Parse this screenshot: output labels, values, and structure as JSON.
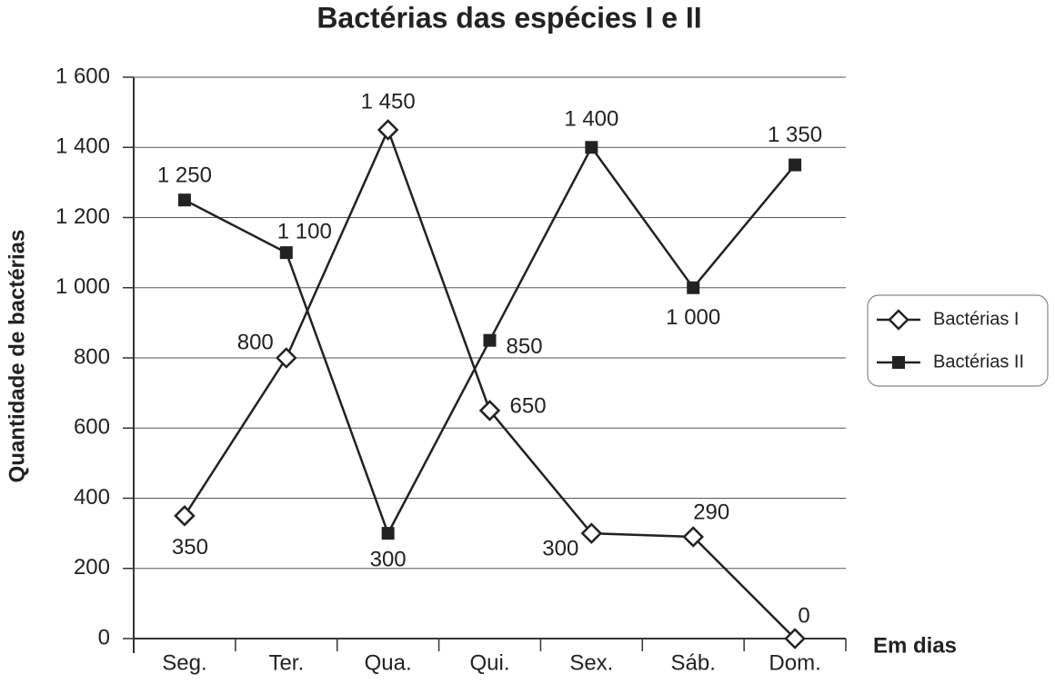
{
  "chart_data": {
    "type": "line",
    "title": "Bactérias das espécies I e II",
    "x_label": "Em dias",
    "y_label": "Quantidade de bactérias",
    "categories": [
      "Seg.",
      "Ter.",
      "Qua.",
      "Qui.",
      "Sex.",
      "Sáb.",
      "Dom."
    ],
    "series": [
      {
        "name": "Bactérias I",
        "color": "#222222",
        "marker": "diamond",
        "values": [
          350,
          800,
          1450,
          650,
          300,
          290,
          0
        ],
        "value_labels": [
          "350",
          "800",
          "1 450",
          "650",
          "300",
          "290",
          "0"
        ]
      },
      {
        "name": "Bactérias II",
        "color": "#222222",
        "marker": "square",
        "values": [
          1250,
          1100,
          300,
          850,
          1400,
          1000,
          1350
        ],
        "value_labels": [
          "1 250",
          "1 100",
          "300",
          "850",
          "1 400",
          "1 000",
          "1 350"
        ]
      }
    ],
    "ylim": [
      0,
      1600
    ],
    "yticks": [
      0,
      200,
      400,
      600,
      800,
      {
        "value": 1000,
        "label": "1 000"
      },
      {
        "value": 1200,
        "label": "1 200"
      },
      {
        "value": 1400,
        "label": "1 400"
      },
      {
        "value": 1600,
        "label": "1 600"
      }
    ],
    "grid": true,
    "legend": "right"
  }
}
